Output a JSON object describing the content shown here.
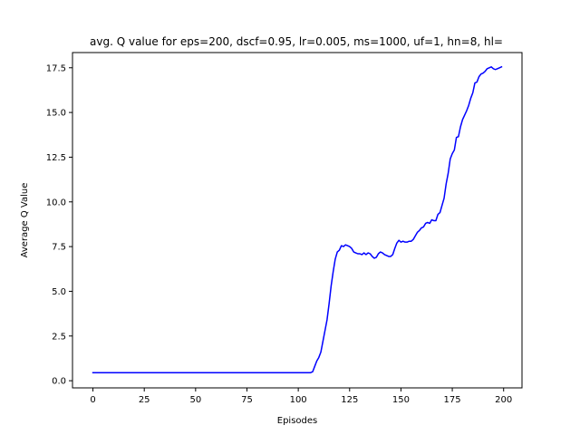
{
  "chart_data": {
    "type": "line",
    "title": "avg. Q value for eps=200, dscf=0.95, lr=0.005, ms=1000, uf=1, hn=8, hl=",
    "xlabel": "Episodes",
    "ylabel": "Average Q Value",
    "xlim": [
      -9.95,
      208.95
    ],
    "ylim": [
      -0.4,
      18.35
    ],
    "xticks": [
      0,
      25,
      50,
      75,
      100,
      125,
      150,
      175,
      200
    ],
    "yticks": [
      0.0,
      2.5,
      5.0,
      7.5,
      10.0,
      12.5,
      15.0,
      17.5
    ],
    "xtick_labels": [
      "0",
      "25",
      "50",
      "75",
      "100",
      "125",
      "150",
      "175",
      "200"
    ],
    "ytick_labels": [
      "0.0",
      "2.5",
      "5.0",
      "7.5",
      "10.0",
      "12.5",
      "15.0",
      "17.5"
    ],
    "grid": false,
    "legend": null,
    "series": [
      {
        "color": "#0000ff",
        "x": [
          0,
          10,
          20,
          30,
          40,
          50,
          60,
          70,
          80,
          90,
          100,
          104,
          106,
          107,
          108,
          109,
          110,
          111,
          112,
          113,
          114,
          115,
          116,
          117,
          118,
          119,
          120,
          121,
          122,
          123,
          124,
          125,
          126,
          127,
          128,
          129,
          130,
          131,
          132,
          133,
          134,
          135,
          136,
          137,
          138,
          139,
          140,
          141,
          142,
          143,
          144,
          145,
          146,
          147,
          148,
          149,
          150,
          151,
          152,
          153,
          154,
          155,
          156,
          157,
          158,
          159,
          160,
          161,
          162,
          163,
          164,
          165,
          166,
          167,
          168,
          169,
          170,
          171,
          172,
          173,
          174,
          175,
          176,
          177,
          178,
          179,
          180,
          181,
          182,
          183,
          184,
          185,
          186,
          187,
          188,
          189,
          190,
          191,
          192,
          193,
          194,
          195,
          196,
          197,
          198,
          199
        ],
        "values": [
          0.45,
          0.45,
          0.45,
          0.45,
          0.45,
          0.45,
          0.45,
          0.45,
          0.45,
          0.45,
          0.45,
          0.45,
          0.45,
          0.5,
          0.8,
          1.1,
          1.3,
          1.6,
          2.2,
          2.8,
          3.4,
          4.3,
          5.3,
          6.1,
          6.8,
          7.2,
          7.3,
          7.55,
          7.5,
          7.6,
          7.55,
          7.5,
          7.4,
          7.2,
          7.15,
          7.1,
          7.1,
          7.05,
          7.15,
          7.05,
          7.15,
          7.1,
          6.95,
          6.85,
          6.9,
          7.1,
          7.2,
          7.15,
          7.05,
          7.0,
          6.95,
          6.95,
          7.05,
          7.4,
          7.7,
          7.85,
          7.75,
          7.8,
          7.75,
          7.75,
          7.8,
          7.8,
          7.9,
          8.1,
          8.3,
          8.4,
          8.55,
          8.6,
          8.8,
          8.85,
          8.8,
          9.0,
          8.95,
          8.95,
          9.3,
          9.4,
          9.8,
          10.2,
          11.0,
          11.6,
          12.4,
          12.7,
          12.9,
          13.6,
          13.65,
          14.2,
          14.6,
          14.85,
          15.1,
          15.4,
          15.8,
          16.1,
          16.65,
          16.7,
          17.0,
          17.15,
          17.2,
          17.3,
          17.45,
          17.5,
          17.55,
          17.45,
          17.4,
          17.45,
          17.5,
          17.55
        ]
      }
    ]
  }
}
